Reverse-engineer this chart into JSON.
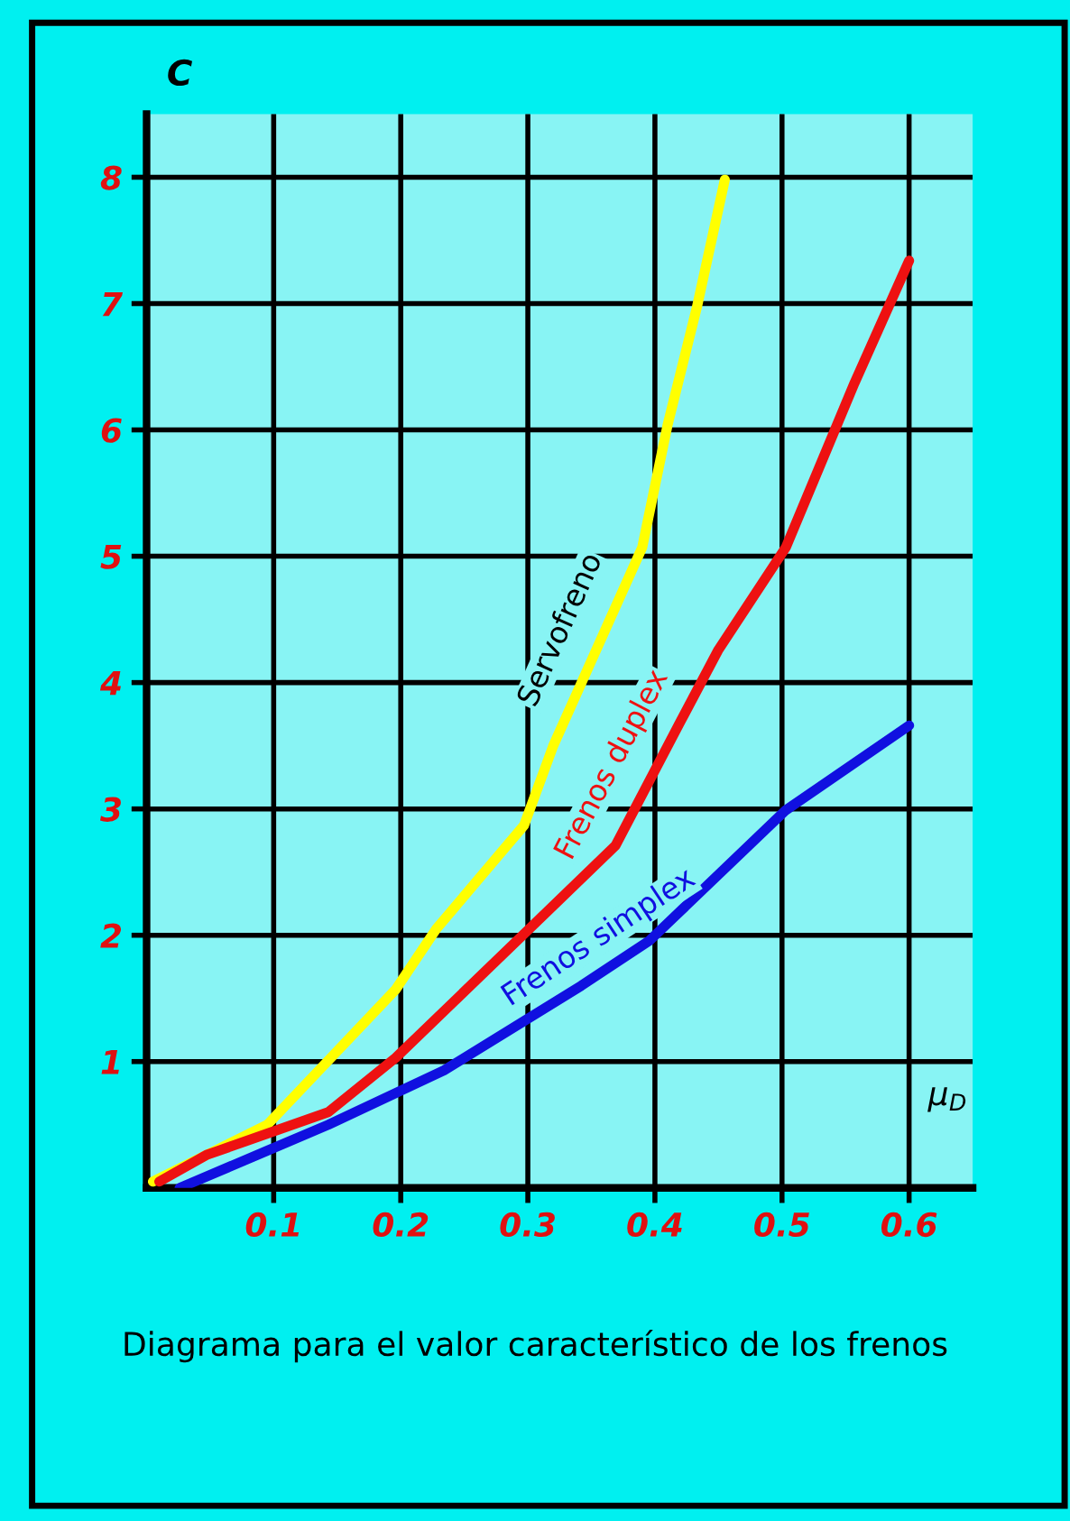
{
  "chart_data": {
    "type": "line",
    "title": "Diagrama para el valor característico de los frenos",
    "xlabel": "μ$_{D}$",
    "ylabel": "C",
    "xlim": [
      0,
      0.65
    ],
    "ylim": [
      0,
      8.5
    ],
    "xticks": [
      0.1,
      0.2,
      0.3,
      0.4,
      0.5,
      0.6
    ],
    "yticks": [
      1,
      2,
      3,
      4,
      5,
      6,
      7,
      8
    ],
    "grid": true,
    "legend": false,
    "marker": "none",
    "line_style": "solid",
    "series": [
      {
        "name": "Servofreno",
        "color": "#ffff00",
        "x": [
          0.005,
          0.095,
          0.196,
          0.228,
          0.297,
          0.32,
          0.39,
          0.41,
          0.433,
          0.455
        ],
        "values": [
          0.05,
          0.5,
          1.57,
          2.05,
          2.87,
          3.5,
          5.07,
          6.04,
          6.97,
          7.98
        ]
      },
      {
        "name": "Frenos duplex",
        "color": "#ee1111",
        "x": [
          0.01,
          0.047,
          0.143,
          0.196,
          0.297,
          0.369,
          0.42,
          0.45,
          0.503,
          0.557,
          0.6
        ],
        "values": [
          0.05,
          0.26,
          0.6,
          1.03,
          2.01,
          2.71,
          3.69,
          4.26,
          5.07,
          6.37,
          7.34
        ]
      },
      {
        "name": "Frenos simplex",
        "color": "#1010e0",
        "x": [
          0.026,
          0.143,
          0.234,
          0.342,
          0.396,
          0.503,
          0.6
        ],
        "values": [
          0.0,
          0.5,
          0.93,
          1.6,
          1.96,
          2.99,
          3.66
        ]
      }
    ]
  }
}
